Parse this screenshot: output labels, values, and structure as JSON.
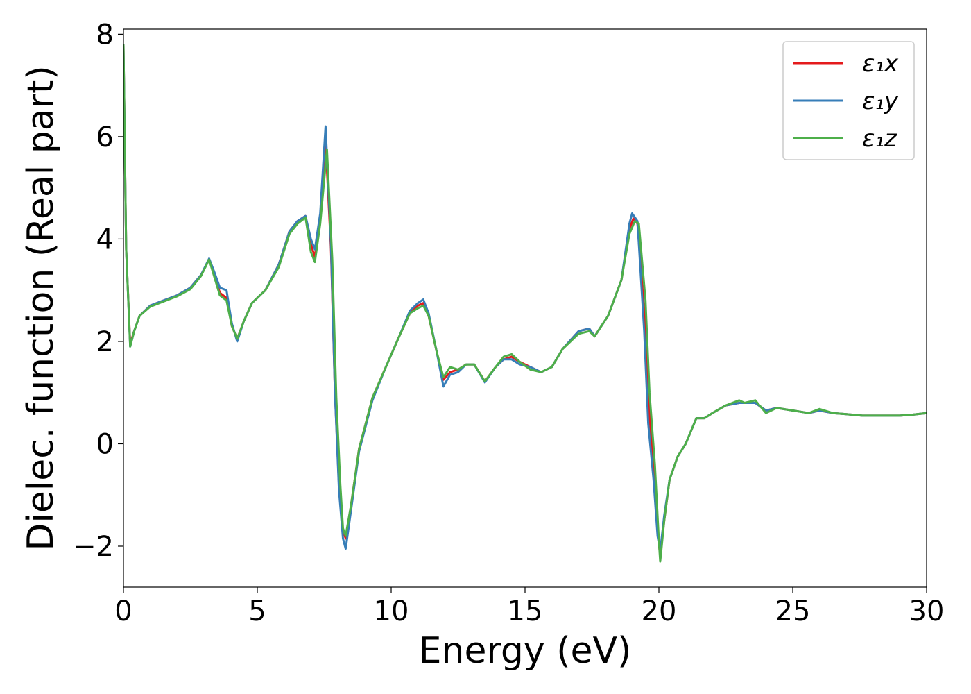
{
  "chart_data": {
    "type": "line",
    "title": "",
    "xlabel": "Energy (eV)",
    "ylabel": "Dielec. function (Real part)",
    "xlim": [
      0,
      30
    ],
    "ylim": [
      -2.8,
      8.1
    ],
    "xticks": [
      0,
      5,
      10,
      15,
      20,
      25,
      30
    ],
    "xtick_labels": [
      "0",
      "5",
      "10",
      "15",
      "20",
      "25",
      "30"
    ],
    "yticks": [
      -2,
      0,
      2,
      4,
      6,
      8
    ],
    "ytick_labels": [
      "−2",
      "0",
      "2",
      "4",
      "6",
      "8"
    ],
    "grid": false,
    "legend_position": "top-right",
    "series": [
      {
        "name": "ε₁x",
        "color": "#e41a1c",
        "points": [
          [
            0,
            7.8
          ],
          [
            0.1,
            3.8
          ],
          [
            0.25,
            1.95
          ],
          [
            0.4,
            2.2
          ],
          [
            0.6,
            2.5
          ],
          [
            1.0,
            2.7
          ],
          [
            1.5,
            2.8
          ],
          [
            2.0,
            2.9
          ],
          [
            2.5,
            3.05
          ],
          [
            2.9,
            3.3
          ],
          [
            3.2,
            3.6
          ],
          [
            3.4,
            3.3
          ],
          [
            3.6,
            2.95
          ],
          [
            3.85,
            2.85
          ],
          [
            4.05,
            2.3
          ],
          [
            4.25,
            2.05
          ],
          [
            4.5,
            2.4
          ],
          [
            4.8,
            2.75
          ],
          [
            5.3,
            3.0
          ],
          [
            5.8,
            3.5
          ],
          [
            6.2,
            4.15
          ],
          [
            6.5,
            4.35
          ],
          [
            6.8,
            4.45
          ],
          [
            7.0,
            3.9
          ],
          [
            7.15,
            3.65
          ],
          [
            7.35,
            4.4
          ],
          [
            7.55,
            5.9
          ],
          [
            7.75,
            3.8
          ],
          [
            7.9,
            1.0
          ],
          [
            8.05,
            -0.8
          ],
          [
            8.2,
            -1.7
          ],
          [
            8.3,
            -1.85
          ],
          [
            8.5,
            -1.2
          ],
          [
            8.8,
            -0.1
          ],
          [
            9.3,
            0.9
          ],
          [
            9.8,
            1.5
          ],
          [
            10.3,
            2.1
          ],
          [
            10.7,
            2.55
          ],
          [
            11.0,
            2.7
          ],
          [
            11.2,
            2.75
          ],
          [
            11.4,
            2.5
          ],
          [
            11.7,
            1.8
          ],
          [
            11.95,
            1.25
          ],
          [
            12.2,
            1.4
          ],
          [
            12.5,
            1.45
          ],
          [
            12.8,
            1.55
          ],
          [
            13.1,
            1.55
          ],
          [
            13.5,
            1.22
          ],
          [
            13.9,
            1.5
          ],
          [
            14.2,
            1.65
          ],
          [
            14.5,
            1.7
          ],
          [
            14.8,
            1.6
          ],
          [
            15.2,
            1.5
          ],
          [
            15.6,
            1.4
          ],
          [
            16.0,
            1.5
          ],
          [
            16.4,
            1.85
          ],
          [
            17.0,
            2.2
          ],
          [
            17.4,
            2.25
          ],
          [
            17.6,
            2.1
          ],
          [
            18.1,
            2.5
          ],
          [
            18.6,
            3.2
          ],
          [
            18.9,
            4.2
          ],
          [
            19.05,
            4.4
          ],
          [
            19.2,
            4.3
          ],
          [
            19.45,
            2.6
          ],
          [
            19.6,
            0.9
          ],
          [
            19.8,
            -0.5
          ],
          [
            19.95,
            -1.7
          ],
          [
            20.05,
            -2.2
          ],
          [
            20.2,
            -1.5
          ],
          [
            20.4,
            -0.7
          ],
          [
            20.7,
            -0.25
          ],
          [
            21.0,
            0.0
          ],
          [
            21.4,
            0.5
          ],
          [
            21.7,
            0.5
          ],
          [
            22.0,
            0.6
          ],
          [
            22.5,
            0.75
          ],
          [
            23.0,
            0.8
          ],
          [
            23.2,
            0.8
          ],
          [
            23.6,
            0.8
          ],
          [
            24.0,
            0.65
          ],
          [
            24.4,
            0.7
          ],
          [
            25.0,
            0.65
          ],
          [
            25.6,
            0.6
          ],
          [
            26.0,
            0.65
          ],
          [
            26.5,
            0.6
          ],
          [
            27.0,
            0.58
          ],
          [
            27.6,
            0.55
          ],
          [
            28.0,
            0.55
          ],
          [
            28.6,
            0.55
          ],
          [
            29.0,
            0.55
          ],
          [
            29.5,
            0.57
          ],
          [
            30,
            0.6
          ]
        ]
      },
      {
        "name": "ε₁y",
        "color": "#377eb8",
        "points": [
          [
            0,
            7.8
          ],
          [
            0.1,
            3.8
          ],
          [
            0.25,
            1.9
          ],
          [
            0.4,
            2.2
          ],
          [
            0.6,
            2.5
          ],
          [
            1.0,
            2.7
          ],
          [
            1.5,
            2.8
          ],
          [
            2.0,
            2.9
          ],
          [
            2.5,
            3.05
          ],
          [
            2.9,
            3.3
          ],
          [
            3.2,
            3.62
          ],
          [
            3.4,
            3.35
          ],
          [
            3.6,
            3.05
          ],
          [
            3.85,
            3.0
          ],
          [
            4.05,
            2.35
          ],
          [
            4.25,
            2.0
          ],
          [
            4.5,
            2.4
          ],
          [
            4.8,
            2.75
          ],
          [
            5.3,
            3.0
          ],
          [
            5.8,
            3.5
          ],
          [
            6.2,
            4.15
          ],
          [
            6.5,
            4.35
          ],
          [
            6.8,
            4.45
          ],
          [
            7.0,
            4.0
          ],
          [
            7.15,
            3.8
          ],
          [
            7.35,
            4.5
          ],
          [
            7.55,
            6.2
          ],
          [
            7.75,
            3.9
          ],
          [
            7.9,
            1.0
          ],
          [
            8.05,
            -0.9
          ],
          [
            8.2,
            -1.85
          ],
          [
            8.3,
            -2.05
          ],
          [
            8.5,
            -1.3
          ],
          [
            8.8,
            -0.15
          ],
          [
            9.3,
            0.85
          ],
          [
            9.8,
            1.5
          ],
          [
            10.3,
            2.1
          ],
          [
            10.7,
            2.6
          ],
          [
            11.0,
            2.75
          ],
          [
            11.2,
            2.82
          ],
          [
            11.4,
            2.55
          ],
          [
            11.7,
            1.8
          ],
          [
            11.95,
            1.12
          ],
          [
            12.2,
            1.35
          ],
          [
            12.5,
            1.4
          ],
          [
            12.8,
            1.55
          ],
          [
            13.1,
            1.55
          ],
          [
            13.5,
            1.2
          ],
          [
            13.9,
            1.5
          ],
          [
            14.2,
            1.65
          ],
          [
            14.5,
            1.65
          ],
          [
            14.8,
            1.55
          ],
          [
            15.2,
            1.5
          ],
          [
            15.6,
            1.4
          ],
          [
            16.0,
            1.5
          ],
          [
            16.4,
            1.85
          ],
          [
            17.0,
            2.2
          ],
          [
            17.4,
            2.25
          ],
          [
            17.6,
            2.1
          ],
          [
            18.1,
            2.5
          ],
          [
            18.6,
            3.2
          ],
          [
            18.9,
            4.3
          ],
          [
            19.0,
            4.5
          ],
          [
            19.2,
            4.35
          ],
          [
            19.45,
            2.2
          ],
          [
            19.6,
            0.4
          ],
          [
            19.8,
            -0.7
          ],
          [
            19.95,
            -1.8
          ],
          [
            20.05,
            -2.1
          ],
          [
            20.2,
            -1.4
          ],
          [
            20.4,
            -0.7
          ],
          [
            20.7,
            -0.25
          ],
          [
            21.0,
            0.0
          ],
          [
            21.4,
            0.5
          ],
          [
            21.7,
            0.5
          ],
          [
            22.0,
            0.6
          ],
          [
            22.5,
            0.75
          ],
          [
            23.0,
            0.8
          ],
          [
            23.2,
            0.8
          ],
          [
            23.6,
            0.8
          ],
          [
            24.0,
            0.65
          ],
          [
            24.4,
            0.7
          ],
          [
            25.0,
            0.65
          ],
          [
            25.6,
            0.6
          ],
          [
            26.0,
            0.65
          ],
          [
            26.5,
            0.6
          ],
          [
            27.0,
            0.58
          ],
          [
            27.6,
            0.55
          ],
          [
            28.0,
            0.55
          ],
          [
            28.6,
            0.55
          ],
          [
            29.0,
            0.55
          ],
          [
            29.5,
            0.57
          ],
          [
            30,
            0.6
          ]
        ]
      },
      {
        "name": "ε₁z",
        "color": "#4daf4a",
        "points": [
          [
            0,
            7.8
          ],
          [
            0.1,
            3.8
          ],
          [
            0.25,
            1.9
          ],
          [
            0.4,
            2.2
          ],
          [
            0.6,
            2.5
          ],
          [
            1.0,
            2.68
          ],
          [
            1.5,
            2.78
          ],
          [
            2.0,
            2.88
          ],
          [
            2.5,
            3.02
          ],
          [
            2.9,
            3.28
          ],
          [
            3.2,
            3.6
          ],
          [
            3.4,
            3.25
          ],
          [
            3.6,
            2.9
          ],
          [
            3.85,
            2.8
          ],
          [
            4.05,
            2.3
          ],
          [
            4.25,
            2.05
          ],
          [
            4.5,
            2.4
          ],
          [
            4.8,
            2.75
          ],
          [
            5.3,
            3.0
          ],
          [
            5.8,
            3.45
          ],
          [
            6.2,
            4.1
          ],
          [
            6.5,
            4.3
          ],
          [
            6.8,
            4.42
          ],
          [
            7.0,
            3.75
          ],
          [
            7.15,
            3.55
          ],
          [
            7.35,
            4.3
          ],
          [
            7.6,
            5.75
          ],
          [
            7.8,
            3.6
          ],
          [
            7.95,
            0.9
          ],
          [
            8.1,
            -0.8
          ],
          [
            8.2,
            -1.65
          ],
          [
            8.3,
            -1.8
          ],
          [
            8.5,
            -1.2
          ],
          [
            8.8,
            -0.1
          ],
          [
            9.3,
            0.9
          ],
          [
            9.8,
            1.5
          ],
          [
            10.3,
            2.1
          ],
          [
            10.7,
            2.55
          ],
          [
            11.0,
            2.65
          ],
          [
            11.2,
            2.7
          ],
          [
            11.4,
            2.5
          ],
          [
            11.7,
            1.8
          ],
          [
            11.95,
            1.3
          ],
          [
            12.2,
            1.5
          ],
          [
            12.5,
            1.45
          ],
          [
            12.8,
            1.55
          ],
          [
            13.1,
            1.55
          ],
          [
            13.5,
            1.22
          ],
          [
            13.9,
            1.5
          ],
          [
            14.2,
            1.7
          ],
          [
            14.5,
            1.75
          ],
          [
            14.8,
            1.6
          ],
          [
            15.2,
            1.45
          ],
          [
            15.6,
            1.4
          ],
          [
            16.0,
            1.5
          ],
          [
            16.4,
            1.85
          ],
          [
            17.0,
            2.15
          ],
          [
            17.4,
            2.2
          ],
          [
            17.6,
            2.1
          ],
          [
            18.1,
            2.5
          ],
          [
            18.6,
            3.2
          ],
          [
            18.9,
            4.1
          ],
          [
            19.1,
            4.35
          ],
          [
            19.25,
            4.3
          ],
          [
            19.5,
            2.8
          ],
          [
            19.65,
            1.0
          ],
          [
            19.85,
            -0.4
          ],
          [
            20.0,
            -1.9
          ],
          [
            20.05,
            -2.3
          ],
          [
            20.2,
            -1.5
          ],
          [
            20.4,
            -0.7
          ],
          [
            20.7,
            -0.25
          ],
          [
            21.0,
            0.0
          ],
          [
            21.4,
            0.5
          ],
          [
            21.7,
            0.5
          ],
          [
            22.0,
            0.6
          ],
          [
            22.5,
            0.75
          ],
          [
            23.0,
            0.85
          ],
          [
            23.2,
            0.8
          ],
          [
            23.6,
            0.85
          ],
          [
            24.0,
            0.6
          ],
          [
            24.4,
            0.7
          ],
          [
            25.0,
            0.65
          ],
          [
            25.6,
            0.6
          ],
          [
            26.0,
            0.68
          ],
          [
            26.5,
            0.6
          ],
          [
            27.0,
            0.58
          ],
          [
            27.6,
            0.55
          ],
          [
            28.0,
            0.55
          ],
          [
            28.6,
            0.55
          ],
          [
            29.0,
            0.55
          ],
          [
            29.5,
            0.57
          ],
          [
            30,
            0.6
          ]
        ]
      }
    ]
  }
}
